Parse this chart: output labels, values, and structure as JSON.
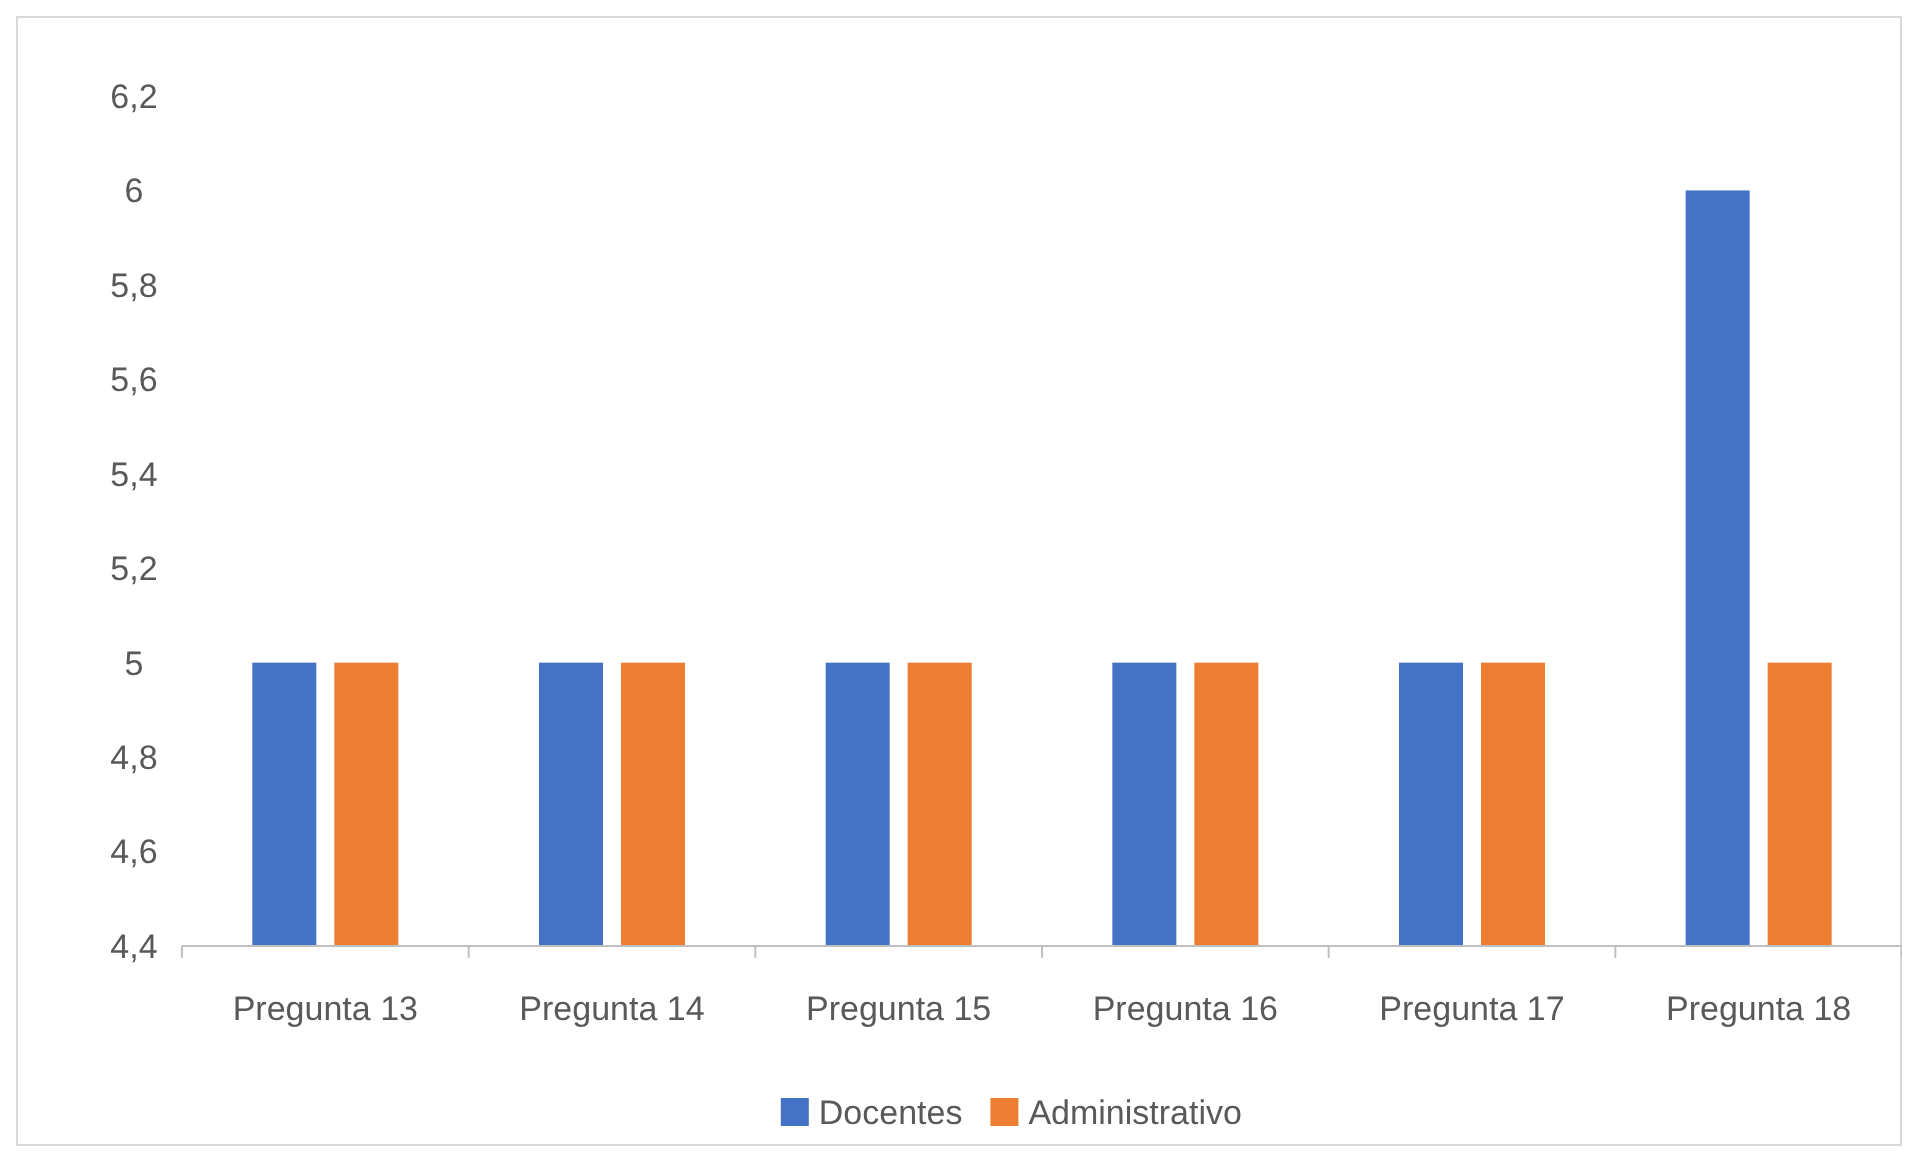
{
  "chart_data": {
    "type": "bar",
    "categories": [
      "Pregunta 13",
      "Pregunta 14",
      "Pregunta 15",
      "Pregunta 16",
      "Pregunta 17",
      "Pregunta 18"
    ],
    "series": [
      {
        "name": "Docentes",
        "color": "#4472c4",
        "values": [
          5,
          5,
          5,
          5,
          5,
          6
        ]
      },
      {
        "name": "Administrativo",
        "color": "#ed7d31",
        "values": [
          5,
          5,
          5,
          5,
          5,
          5
        ]
      }
    ],
    "ylim": [
      4.4,
      6.2
    ],
    "yticks": [
      {
        "value": 4.4,
        "label": "4,4"
      },
      {
        "value": 4.6,
        "label": "4,6"
      },
      {
        "value": 4.8,
        "label": "4,8"
      },
      5,
      {
        "value": 5.2,
        "label": "5,2"
      },
      {
        "value": 5.4,
        "label": "5,4"
      },
      {
        "value": 5.6,
        "label": "5,6"
      },
      {
        "value": 5.8,
        "label": "5,8"
      },
      6,
      {
        "value": 6.2,
        "label": "6,2"
      }
    ],
    "grid": false,
    "legend": "bottom"
  }
}
